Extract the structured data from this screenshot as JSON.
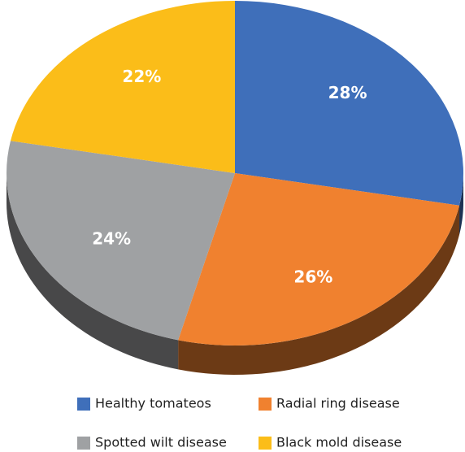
{
  "chart_data": {
    "type": "pie",
    "categories": [
      "Healthy tomateos",
      "Radial ring disease",
      "Spotted wilt disease",
      "Black mold disease"
    ],
    "values": [
      28,
      26,
      24,
      22
    ],
    "value_labels": [
      "28%",
      "26%",
      "24%",
      "22%"
    ],
    "colors": [
      "#3f6fba",
      "#f0812f",
      "#9fa1a3",
      "#fbbd19"
    ]
  }
}
